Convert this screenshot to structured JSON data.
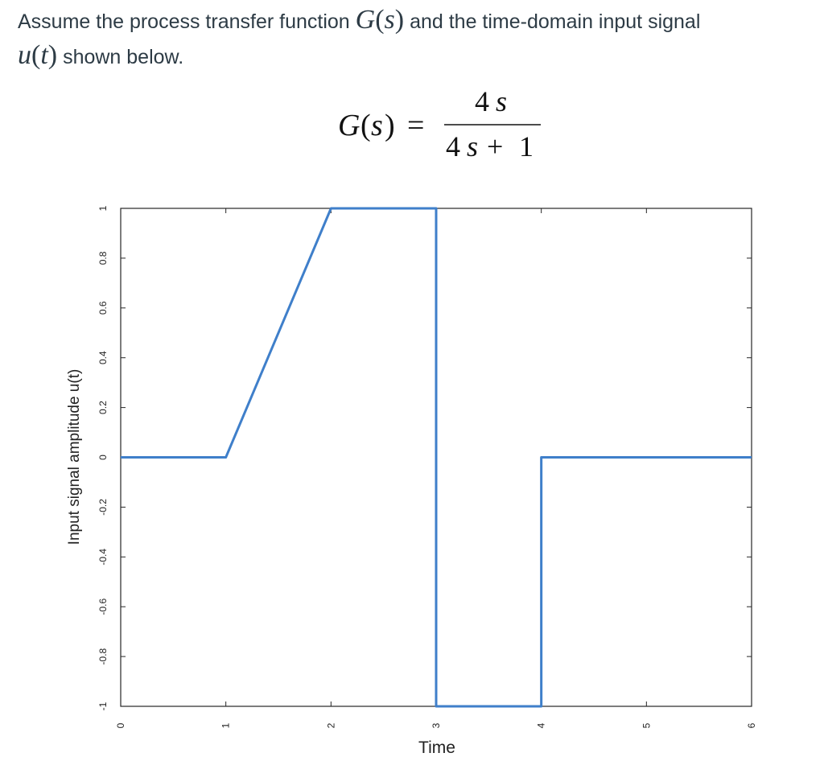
{
  "intro": {
    "line1_pre": "Assume the process transfer function",
    "g_symbol": "G",
    "s_arg": "s",
    "line1_post": "and the time-domain input signal",
    "u_symbol": "u",
    "t_arg": "t",
    "line2_post": "shown below."
  },
  "formula": {
    "lhs_func": "G",
    "lhs_var": "s",
    "equals": "=",
    "numerator_coef": "4",
    "numerator_var": "s",
    "denominator_coef": "4",
    "denominator_var": "s",
    "denominator_plus": "+",
    "denominator_const": "1"
  },
  "chart_data": {
    "type": "line",
    "xlabel": "Time",
    "ylabel": "Input signal amplitude u(t)",
    "xlim": [
      0,
      6
    ],
    "ylim": [
      -1,
      1
    ],
    "xticks": [
      0,
      1,
      2,
      3,
      4,
      5,
      6
    ],
    "yticks": [
      1,
      0.8,
      0.6,
      0.4,
      0.2,
      0,
      -0.2,
      -0.4,
      -0.6,
      -0.8,
      -1
    ],
    "ytick_labels": [
      "1",
      "0.8",
      "0.6",
      "0.4",
      "0.2",
      "0",
      "-0.2",
      "-0.4",
      "-0.6",
      "-0.8",
      "-1"
    ],
    "grid": false,
    "series": [
      {
        "color": "#3f7fca",
        "x": [
          0,
          1,
          2,
          3,
          3,
          4,
          4,
          6
        ],
        "y": [
          0,
          0,
          1,
          1,
          -1,
          -1,
          0,
          0
        ]
      }
    ]
  }
}
